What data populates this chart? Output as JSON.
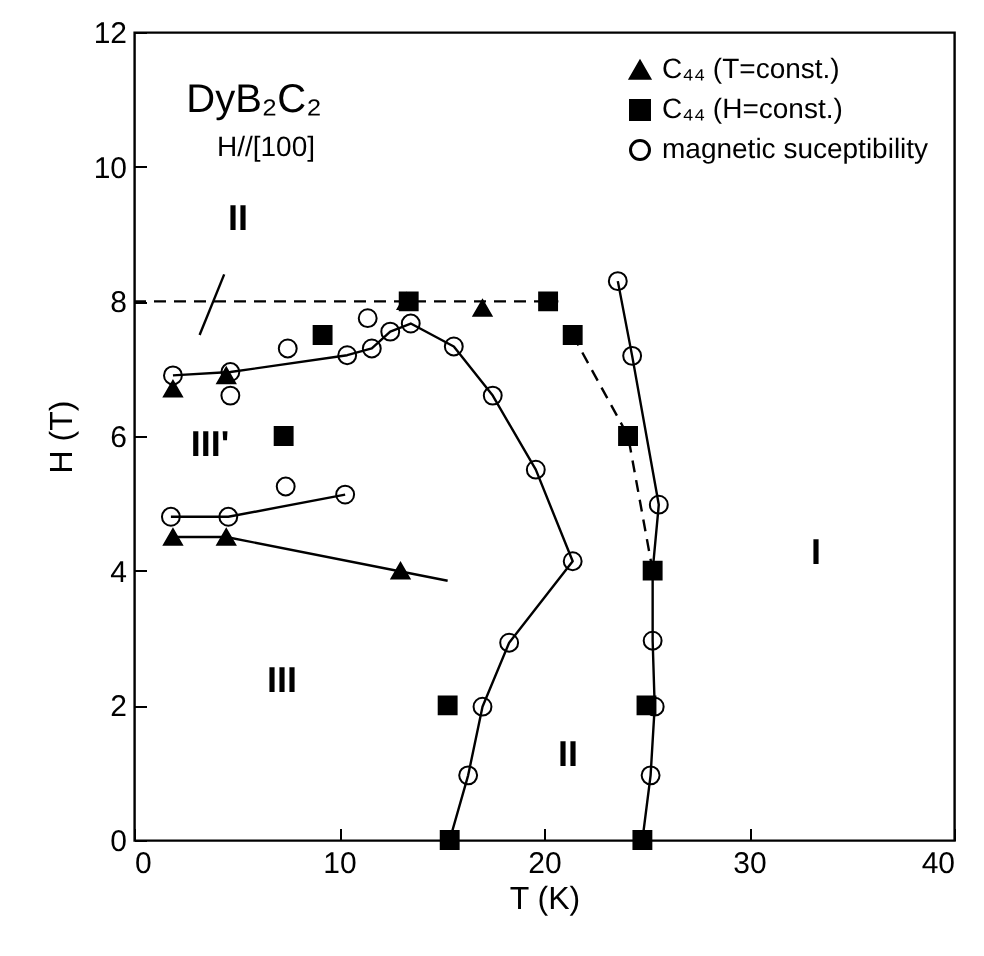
{
  "chart_data": {
    "type": "scatter",
    "xlabel": "T (K)",
    "ylabel": "H (T)",
    "xlim": [
      0,
      40
    ],
    "xticks": [
      0,
      10,
      20,
      30,
      40
    ],
    "ylim": [
      0,
      12
    ],
    "yticks": [
      0,
      2,
      4,
      6,
      8,
      10,
      12
    ],
    "legend": "top right",
    "grid": false,
    "annotations": [
      "DyB₂C₂",
      "H//[100]",
      "II",
      "III'",
      "III",
      "II",
      "I"
    ],
    "series": [
      {
        "name": "C₄₄ (T=const.)",
        "type": "scatter",
        "marker": "triangle",
        "color": "#000000",
        "x": [
          1.9,
          4.5,
          1.9,
          4.5,
          13.0,
          13.3,
          17.0
        ],
        "values": [
          6.7,
          6.9,
          4.5,
          4.5,
          4.0,
          8.0,
          7.9
        ]
      },
      {
        "name": "C₄₄ (H=const.)",
        "type": "scatter",
        "marker": "square",
        "color": "#000000",
        "x": [
          13.4,
          20.2,
          21.4,
          9.2,
          7.3,
          24.1,
          25.3,
          25.0,
          15.3,
          15.4,
          24.8
        ],
        "values": [
          8.0,
          8.0,
          7.5,
          7.5,
          6.0,
          6.0,
          4.0,
          2.0,
          2.0,
          0,
          0
        ]
      },
      {
        "name": "magnetic suceptibility",
        "type": "scatter",
        "marker": "circle",
        "color": "#000000",
        "x": [
          1.9,
          4.7,
          10.4,
          11.6,
          12.5,
          13.5,
          15.6,
          17.5,
          19.6,
          21.4,
          18.3,
          17.0,
          16.3,
          7.5,
          11.4,
          4.7,
          7.4,
          1.8,
          4.6,
          10.3,
          23.6,
          24.3,
          25.6,
          25.3,
          25.4,
          25.2
        ],
        "values": [
          6.9,
          6.95,
          7.2,
          7.3,
          7.55,
          7.67,
          7.33,
          6.6,
          5.5,
          4.14,
          2.93,
          1.98,
          0.96,
          7.3,
          7.75,
          6.6,
          5.25,
          4.8,
          4.8,
          5.13,
          8.3,
          7.19,
          4.98,
          2.96,
          1.98,
          0.96
        ]
      },
      {
        "type": "line",
        "color": "#000000",
        "line_style": "solid",
        "x": [
          1.9,
          4.7,
          10.4,
          11.6,
          12.5,
          13.5,
          15.6,
          17.5,
          19.6,
          21.4,
          18.3,
          17.0,
          16.3,
          15.4
        ],
        "values": [
          6.9,
          6.95,
          7.2,
          7.3,
          7.55,
          7.67,
          7.33,
          6.6,
          5.5,
          4.14,
          2.93,
          1.98,
          0.96,
          0
        ]
      },
      {
        "type": "line",
        "color": "#000000",
        "line_style": "solid",
        "x": [
          1.8,
          4.6,
          10.3
        ],
        "values": [
          4.8,
          4.8,
          5.13
        ]
      },
      {
        "type": "line",
        "color": "#000000",
        "line_style": "solid",
        "x": [
          1.9,
          4.5,
          15.3
        ],
        "values": [
          4.5,
          4.5,
          3.85
        ]
      },
      {
        "type": "line",
        "color": "#000000",
        "line_style": "solid",
        "x": [
          23.6,
          24.3,
          25.6,
          25.3,
          25.3,
          25.4,
          25.2,
          24.8
        ],
        "values": [
          8.3,
          7.19,
          4.98,
          4.0,
          2.96,
          1.98,
          0.96,
          0
        ]
      },
      {
        "type": "line",
        "color": "#000000",
        "line_style": "dashed",
        "x": [
          0,
          20.7
        ],
        "values": [
          8,
          8
        ]
      },
      {
        "type": "line",
        "color": "#000000",
        "line_style": "dashed",
        "x": [
          21.4,
          24.1,
          25.3
        ],
        "values": [
          7.5,
          6.0,
          4.0
        ]
      },
      {
        "type": "line",
        "color": "#000000",
        "line_style": "solid",
        "x": [
          3.2,
          4.4
        ],
        "values": [
          7.5,
          8.4
        ]
      }
    ]
  }
}
